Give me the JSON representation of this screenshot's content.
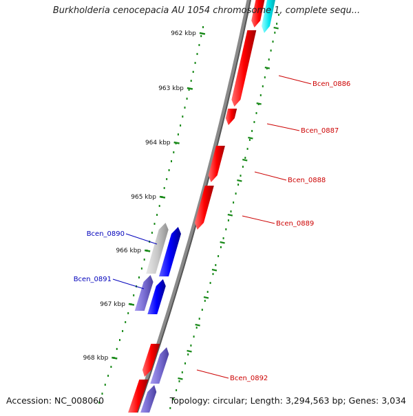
{
  "title": "Burkholderia cenocepacia AU 1054 chromosome 1, complete sequ...",
  "footer": {
    "accession": "Accession: NC_008060",
    "summary": "Topology: circular; Length: 3,294,563 bp; Genes: 3,034"
  },
  "colors": {
    "forward_gene": "#ff0000",
    "reverse_gene": "#0000ff",
    "reverse_gene_light": "#7b6fd4",
    "pseudo_gene": "#c8c8c8",
    "cyan_gene": "#00e5ee",
    "kbp_ticks": "#1a8a1a",
    "backbone": "#777777",
    "forward_label": "#cc0000",
    "reverse_label": "#0000bb"
  },
  "kbp_ticks": [
    "962 kbp",
    "963 kbp",
    "964 kbp",
    "965 kbp",
    "966 kbp",
    "967 kbp",
    "968 kbp"
  ],
  "gene_labels": [
    {
      "name": "Bcen_0886",
      "strand": "forward"
    },
    {
      "name": "Bcen_0887",
      "strand": "forward"
    },
    {
      "name": "Bcen_0888",
      "strand": "forward"
    },
    {
      "name": "Bcen_0889",
      "strand": "forward"
    },
    {
      "name": "Bcen_0890",
      "strand": "reverse"
    },
    {
      "name": "Bcen_0891",
      "strand": "reverse"
    },
    {
      "name": "Bcen_0892",
      "strand": "forward"
    }
  ]
}
